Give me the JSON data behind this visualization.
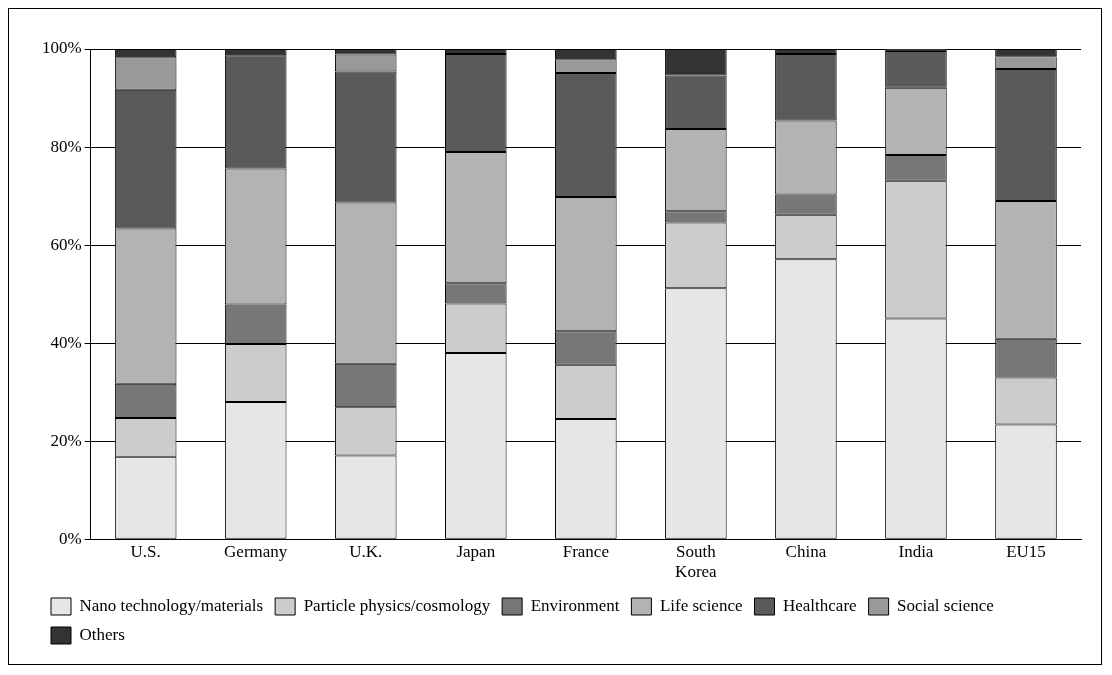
{
  "chart_data": {
    "type": "bar",
    "stacked": true,
    "categories": [
      "U.S.",
      "Germany",
      "U.K.",
      "Japan",
      "France",
      "South Korea",
      "China",
      "India",
      "EU15"
    ],
    "series": [
      {
        "name": "Nano technology/materials",
        "color": "#e6e6e6",
        "values": [
          16.8,
          28.0,
          17.1,
          38.0,
          24.5,
          51.2,
          57.1,
          45.0,
          23.4
        ]
      },
      {
        "name": "Particle physics/cosmology",
        "color": "#cccccc",
        "values": [
          7.9,
          11.8,
          9.8,
          10.1,
          11.1,
          13.4,
          9.1,
          28.1,
          9.6
        ]
      },
      {
        "name": "Environment",
        "color": "#777777",
        "values": [
          7.0,
          8.1,
          8.9,
          4.1,
          6.8,
          2.3,
          4.1,
          5.3,
          7.9
        ]
      },
      {
        "name": "Life science",
        "color": "#b3b3b3",
        "values": [
          31.7,
          27.7,
          32.9,
          26.8,
          27.4,
          16.8,
          15.1,
          13.7,
          28.1
        ]
      },
      {
        "name": "Healthcare",
        "color": "#5a5a5a",
        "values": [
          28.3,
          23.1,
          26.7,
          20.0,
          25.3,
          10.9,
          13.6,
          7.5,
          26.9
        ]
      },
      {
        "name": "Social science",
        "color": "#999999",
        "values": [
          6.6,
          0,
          3.5,
          0,
          2.8,
          0,
          0,
          0,
          2.6
        ]
      },
      {
        "name": "Others",
        "color": "#333333",
        "values": [
          1.7,
          1.3,
          1.1,
          1.0,
          2.1,
          5.4,
          1.0,
          0.4,
          1.5
        ]
      }
    ],
    "ylim": [
      0,
      100
    ],
    "yticks": [
      {
        "value": 0,
        "label": "0%"
      },
      {
        "value": 20,
        "label": "20%"
      },
      {
        "value": 40,
        "label": "40%"
      },
      {
        "value": 60,
        "label": "60%"
      },
      {
        "value": 80,
        "label": "80%"
      },
      {
        "value": 100,
        "label": "100%"
      }
    ],
    "grid": "y",
    "legend": "bottom"
  }
}
